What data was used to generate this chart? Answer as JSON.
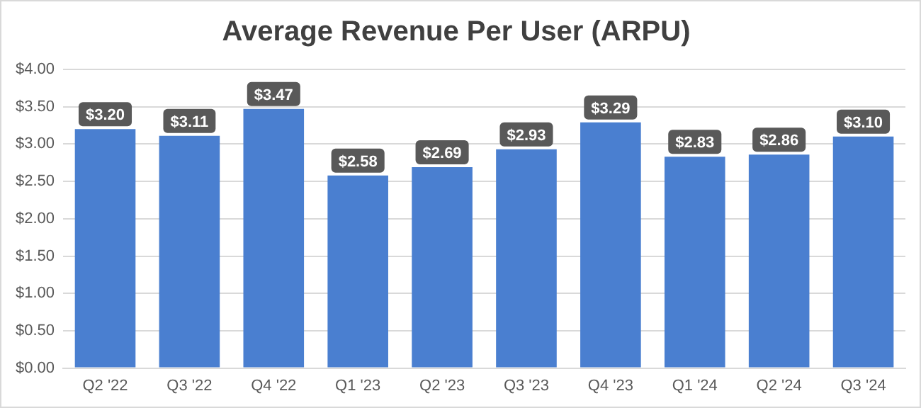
{
  "chart_data": {
    "type": "bar",
    "title": "Average Revenue Per User (ARPU)",
    "categories": [
      "Q2 '22",
      "Q3 '22",
      "Q4 '22",
      "Q1 '23",
      "Q2 '23",
      "Q3 '23",
      "Q4 '23",
      "Q1 '24",
      "Q2 '24",
      "Q3 '24"
    ],
    "values": [
      3.2,
      3.11,
      3.47,
      2.58,
      2.69,
      2.93,
      3.29,
      2.83,
      2.86,
      3.1
    ],
    "value_labels": [
      "$3.20",
      "$3.11",
      "$3.47",
      "$2.58",
      "$2.69",
      "$2.93",
      "$3.29",
      "$2.83",
      "$2.86",
      "$3.10"
    ],
    "color": "#4a7fd0",
    "ylim": [
      0,
      4
    ],
    "yticks": [
      {
        "value": 0,
        "label": "$0.00"
      },
      {
        "value": 0.5,
        "label": "$0.50"
      },
      {
        "value": 1,
        "label": "$1.00"
      },
      {
        "value": 1.5,
        "label": "$1.50"
      },
      {
        "value": 2,
        "label": "$2.00"
      },
      {
        "value": 2.5,
        "label": "$2.50"
      },
      {
        "value": 3,
        "label": "$3.00"
      },
      {
        "value": 3.5,
        "label": "$3.50"
      },
      {
        "value": 4,
        "label": "$4.00"
      }
    ],
    "grid": "y",
    "legend": false
  }
}
